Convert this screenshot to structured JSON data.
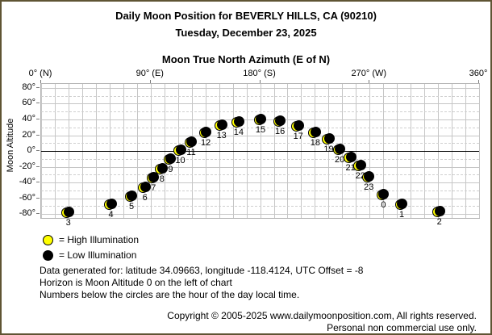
{
  "header": {
    "title": "Daily Moon Position for BEVERLY HILLS, CA (90210)",
    "subtitle": "Tuesday, December 23, 2025"
  },
  "chart_data": {
    "type": "scatter",
    "title": "Moon True North Azimuth (E of N)",
    "xlabel": "Moon True North Azimuth (E of N)",
    "ylabel": "Moon Altitude",
    "xlim": [
      0,
      360
    ],
    "ylim": [
      -85,
      85
    ],
    "grid": "on",
    "x_ticks": [
      {
        "value": 0,
        "label": "0° (N)"
      },
      {
        "value": 90,
        "label": "90° (E)"
      },
      {
        "value": 180,
        "label": "180° (S)"
      },
      {
        "value": 270,
        "label": "270° (W)"
      },
      {
        "value": 360,
        "label": "360°"
      }
    ],
    "y_ticks": [
      {
        "value": 80,
        "label": "80°"
      },
      {
        "value": 60,
        "label": "60°"
      },
      {
        "value": 40,
        "label": "40°"
      },
      {
        "value": 20,
        "label": "20°"
      },
      {
        "value": 0,
        "label": "0°"
      },
      {
        "value": -20,
        "label": "-20°"
      },
      {
        "value": -40,
        "label": "-40°"
      },
      {
        "value": -60,
        "label": "-60°"
      },
      {
        "value": -80,
        "label": "-80°"
      }
    ],
    "points": [
      {
        "hour": "0",
        "azimuth_deg": 282,
        "altitude_deg": -56,
        "illumination": "low"
      },
      {
        "hour": "1",
        "azimuth_deg": 297,
        "altitude_deg": -69,
        "illumination": "low"
      },
      {
        "hour": "2",
        "azimuth_deg": 328,
        "altitude_deg": -78,
        "illumination": "low"
      },
      {
        "hour": "3",
        "azimuth_deg": 23,
        "altitude_deg": -79,
        "illumination": "low"
      },
      {
        "hour": "4",
        "azimuth_deg": 58,
        "altitude_deg": -69,
        "illumination": "low"
      },
      {
        "hour": "5",
        "azimuth_deg": 75,
        "altitude_deg": -58,
        "illumination": "low"
      },
      {
        "hour": "6",
        "azimuth_deg": 86,
        "altitude_deg": -47,
        "illumination": "low"
      },
      {
        "hour": "7",
        "azimuth_deg": 93,
        "altitude_deg": -35,
        "illumination": "low"
      },
      {
        "hour": "8",
        "azimuth_deg": 100,
        "altitude_deg": -24,
        "illumination": "low"
      },
      {
        "hour": "9",
        "azimuth_deg": 107,
        "altitude_deg": -11,
        "illumination": "low"
      },
      {
        "hour": "10",
        "azimuth_deg": 115,
        "altitude_deg": 0,
        "illumination": "low"
      },
      {
        "hour": "11",
        "azimuth_deg": 124,
        "altitude_deg": 10,
        "illumination": "low"
      },
      {
        "hour": "12",
        "azimuth_deg": 136,
        "altitude_deg": 23,
        "illumination": "low"
      },
      {
        "hour": "13",
        "azimuth_deg": 149,
        "altitude_deg": 32,
        "illumination": "low"
      },
      {
        "hour": "14",
        "azimuth_deg": 163,
        "altitude_deg": 36,
        "illumination": "low"
      },
      {
        "hour": "15",
        "azimuth_deg": 181,
        "altitude_deg": 39,
        "illumination": "low"
      },
      {
        "hour": "16",
        "azimuth_deg": 197,
        "altitude_deg": 37,
        "illumination": "low"
      },
      {
        "hour": "17",
        "azimuth_deg": 212,
        "altitude_deg": 31,
        "illumination": "low"
      },
      {
        "hour": "18",
        "azimuth_deg": 226,
        "altitude_deg": 23,
        "illumination": "low"
      },
      {
        "hour": "19",
        "azimuth_deg": 237,
        "altitude_deg": 14,
        "illumination": "low"
      },
      {
        "hour": "20",
        "azimuth_deg": 246,
        "altitude_deg": 1,
        "illumination": "low"
      },
      {
        "hour": "21",
        "azimuth_deg": 255,
        "altitude_deg": -9,
        "illumination": "low"
      },
      {
        "hour": "22",
        "azimuth_deg": 263,
        "altitude_deg": -19,
        "illumination": "low"
      },
      {
        "hour": "23",
        "azimuth_deg": 270,
        "altitude_deg": -34,
        "illumination": "low"
      }
    ],
    "colors": {
      "high_illumination": "#ffff00",
      "low_illumination": "#000000"
    },
    "legend_position": "bottom-left"
  },
  "legend": {
    "high_label": "= High Illumination",
    "low_label": "= Low Illumination"
  },
  "notes": [
    "Data generated for: latitude 34.09663, longitude -118.4124, UTC Offset = -8",
    "Horizon is Moon Altitude 0 on the left of chart",
    "Numbers below the circles are the hour of the day local time."
  ],
  "footer": {
    "copyright": "Copyright © 2005-2025 www.dailymoonposition.com, All rights reserved.",
    "personal": "Personal non commercial use only."
  }
}
